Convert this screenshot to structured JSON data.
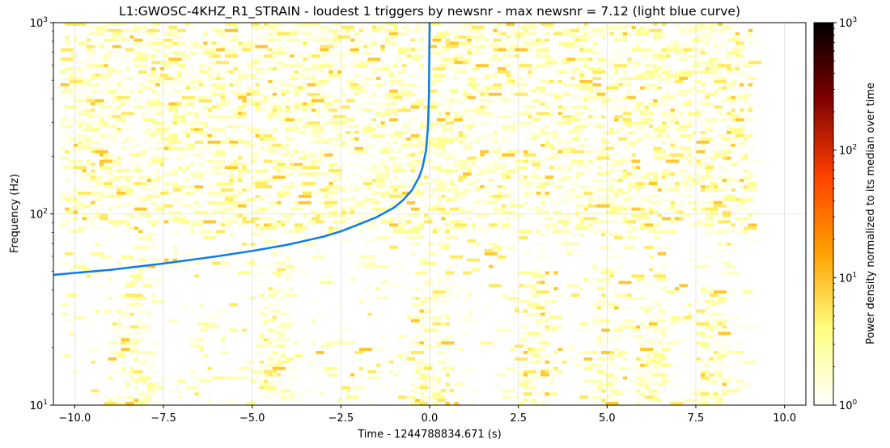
{
  "chart_data": {
    "type": "heatmap",
    "title": "L1:GWOSC-4KHZ_R1_STRAIN - loudest 1 triggers by newsnr - max newsnr = 7.12 (light blue curve)",
    "xlabel": "Time - 1244788834.671 (s)",
    "ylabel": "Frequency (Hz)",
    "xlim": [
      -10.6,
      10.6
    ],
    "ylim": [
      10,
      1000
    ],
    "yscale": "log",
    "x_ticks": [
      -10,
      -7.5,
      -5,
      -2.5,
      0,
      2.5,
      5,
      7.5,
      10
    ],
    "x_tick_labels": [
      "−10.0",
      "−7.5",
      "−5.0",
      "−2.5",
      "0.0",
      "2.5",
      "5.0",
      "7.5",
      "10.0"
    ],
    "y_ticks": [
      10,
      100,
      1000
    ],
    "y_tick_labels": [
      {
        "base": "10",
        "exp": "1"
      },
      {
        "base": "10",
        "exp": "2"
      },
      {
        "base": "10",
        "exp": "3"
      }
    ],
    "grid": true,
    "spectrogram_extent": {
      "x": [
        -10.4,
        9.1
      ],
      "y": [
        10,
        1000
      ]
    },
    "colormap": "afmhot_r",
    "colorbar": {
      "label": "Power density normalized to its median over time",
      "scale": "log",
      "range": [
        1,
        1000
      ],
      "ticks": [
        1,
        10,
        100,
        1000
      ],
      "tick_labels": [
        {
          "base": "10",
          "exp": "0"
        },
        {
          "base": "10",
          "exp": "1"
        },
        {
          "base": "10",
          "exp": "2"
        },
        {
          "base": "10",
          "exp": "3"
        }
      ]
    },
    "series": [
      {
        "label": "light blue curve",
        "color": "#0a7ce8",
        "x": [
          -10.6,
          -9,
          -7.5,
          -6,
          -5,
          -4,
          -3,
          -2.5,
          -2,
          -1.5,
          -1,
          -0.75,
          -0.5,
          -0.3,
          -0.2,
          -0.1,
          -0.05,
          -0.02,
          0
        ],
        "y": [
          48,
          51,
          55,
          60,
          64,
          69,
          76,
          81,
          88,
          96,
          108,
          118,
          133,
          155,
          175,
          215,
          280,
          400,
          1000
        ]
      }
    ]
  }
}
